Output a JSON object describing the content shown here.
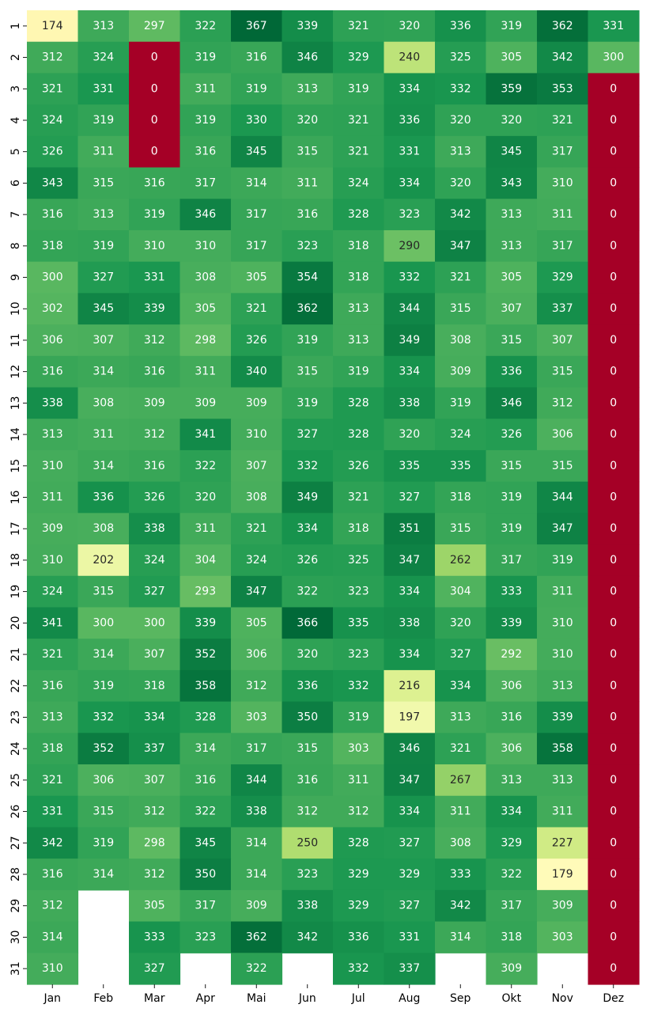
{
  "chart_data": {
    "type": "heatmap",
    "x_categories": [
      "Jan",
      "Feb",
      "Mar",
      "Apr",
      "Mai",
      "Jun",
      "Jul",
      "Aug",
      "Sep",
      "Okt",
      "Nov",
      "Dez"
    ],
    "y_categories": [
      "1",
      "2",
      "3",
      "4",
      "5",
      "6",
      "7",
      "8",
      "9",
      "10",
      "11",
      "12",
      "13",
      "14",
      "15",
      "16",
      "17",
      "18",
      "19",
      "20",
      "21",
      "22",
      "23",
      "24",
      "25",
      "26",
      "27",
      "28",
      "29",
      "30",
      "31"
    ],
    "colormap": "RdYlGn",
    "vmin": 0,
    "vmax": 367,
    "annotated": true,
    "colorbar": false,
    "values": [
      [
        174,
        313,
        297,
        322,
        367,
        339,
        321,
        320,
        336,
        319,
        362,
        331
      ],
      [
        312,
        324,
        0,
        319,
        316,
        346,
        329,
        240,
        325,
        305,
        342,
        300
      ],
      [
        321,
        331,
        0,
        311,
        319,
        313,
        319,
        334,
        332,
        359,
        353,
        0
      ],
      [
        324,
        319,
        0,
        319,
        330,
        320,
        321,
        336,
        320,
        320,
        321,
        0
      ],
      [
        326,
        311,
        0,
        316,
        345,
        315,
        321,
        331,
        313,
        345,
        317,
        0
      ],
      [
        343,
        315,
        316,
        317,
        314,
        311,
        324,
        334,
        320,
        343,
        310,
        0
      ],
      [
        316,
        313,
        319,
        346,
        317,
        316,
        328,
        323,
        342,
        313,
        311,
        0
      ],
      [
        318,
        319,
        310,
        310,
        317,
        323,
        318,
        290,
        347,
        313,
        317,
        0
      ],
      [
        300,
        327,
        331,
        308,
        305,
        354,
        318,
        332,
        321,
        305,
        329,
        0
      ],
      [
        302,
        345,
        339,
        305,
        321,
        362,
        313,
        344,
        315,
        307,
        337,
        0
      ],
      [
        306,
        307,
        312,
        298,
        326,
        319,
        313,
        349,
        308,
        315,
        307,
        0
      ],
      [
        316,
        314,
        316,
        311,
        340,
        315,
        319,
        334,
        309,
        336,
        315,
        0
      ],
      [
        338,
        308,
        309,
        309,
        309,
        319,
        328,
        338,
        319,
        346,
        312,
        0
      ],
      [
        313,
        311,
        312,
        341,
        310,
        327,
        328,
        320,
        324,
        326,
        306,
        0
      ],
      [
        310,
        314,
        316,
        322,
        307,
        332,
        326,
        335,
        335,
        315,
        315,
        0
      ],
      [
        311,
        336,
        326,
        320,
        308,
        349,
        321,
        327,
        318,
        319,
        344,
        0
      ],
      [
        309,
        308,
        338,
        311,
        321,
        334,
        318,
        351,
        315,
        319,
        347,
        0
      ],
      [
        310,
        202,
        324,
        304,
        324,
        326,
        325,
        347,
        262,
        317,
        319,
        0
      ],
      [
        324,
        315,
        327,
        293,
        347,
        322,
        323,
        334,
        304,
        333,
        311,
        0
      ],
      [
        341,
        300,
        300,
        339,
        305,
        366,
        335,
        338,
        320,
        339,
        310,
        0
      ],
      [
        321,
        314,
        307,
        352,
        306,
        320,
        323,
        334,
        327,
        292,
        310,
        0
      ],
      [
        316,
        319,
        318,
        358,
        312,
        336,
        332,
        216,
        334,
        306,
        313,
        0
      ],
      [
        313,
        332,
        334,
        328,
        303,
        350,
        319,
        197,
        313,
        316,
        339,
        0
      ],
      [
        318,
        352,
        337,
        314,
        317,
        315,
        303,
        346,
        321,
        306,
        358,
        0
      ],
      [
        321,
        306,
        307,
        316,
        344,
        316,
        311,
        347,
        267,
        313,
        313,
        0
      ],
      [
        331,
        315,
        312,
        322,
        338,
        312,
        312,
        334,
        311,
        334,
        311,
        0
      ],
      [
        342,
        319,
        298,
        345,
        314,
        250,
        328,
        327,
        308,
        329,
        227,
        0
      ],
      [
        316,
        314,
        312,
        350,
        314,
        323,
        329,
        329,
        333,
        322,
        179,
        0
      ],
      [
        312,
        null,
        305,
        317,
        309,
        338,
        329,
        327,
        342,
        317,
        309,
        0
      ],
      [
        314,
        null,
        333,
        323,
        362,
        342,
        336,
        331,
        314,
        318,
        303,
        0
      ],
      [
        310,
        null,
        327,
        null,
        322,
        null,
        332,
        337,
        null,
        309,
        null,
        0
      ]
    ]
  }
}
